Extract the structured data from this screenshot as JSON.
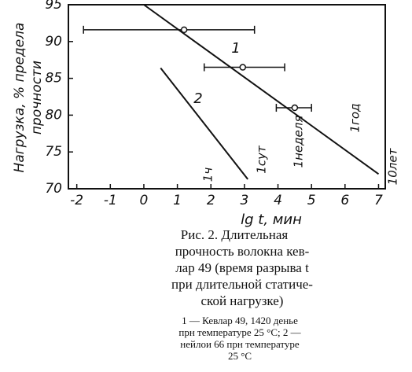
{
  "chart_data": {
    "type": "line",
    "y_label": [
      "Нагрузка, % предела",
      "прочности"
    ],
    "x_label": "lg t, мин",
    "xlim": [
      -2.25,
      7.2
    ],
    "ylim": [
      70,
      95
    ],
    "xticks": [
      -2,
      -1,
      0,
      1,
      2,
      3,
      4,
      5,
      6,
      7
    ],
    "yticks": [
      70,
      75,
      80,
      85,
      90,
      95
    ],
    "color": "#111111",
    "series": [
      {
        "name": "1",
        "x": [
          0,
          7
        ],
        "values": [
          95,
          72
        ]
      },
      {
        "name": "2",
        "x": [
          0.5,
          3.1
        ],
        "values": [
          86.4,
          71.3
        ]
      }
    ],
    "points": {
      "x": [
        1.2,
        2.95,
        4.5
      ],
      "values": [
        91.6,
        86.5,
        81
      ],
      "x_low": [
        -1.8,
        1.8,
        3.95
      ],
      "x_high": [
        3.3,
        4.2,
        5.0
      ]
    },
    "annotations": [
      "1ч",
      "1сут",
      "1неделя",
      "1год",
      "10лет"
    ],
    "caption": [
      "Рис.  2.  Длительная",
      "прочность  волокна  кев-",
      "лар 49 (время разрыва t",
      "при длительной статиче-",
      "ской нагрузке)"
    ],
    "footnote": [
      "1 — Кевлар 49,  1420  денье",
      "прн  температуре  25 °С;  2 —",
      "нейлои  66  прн  температуре",
      "25 °С"
    ]
  }
}
